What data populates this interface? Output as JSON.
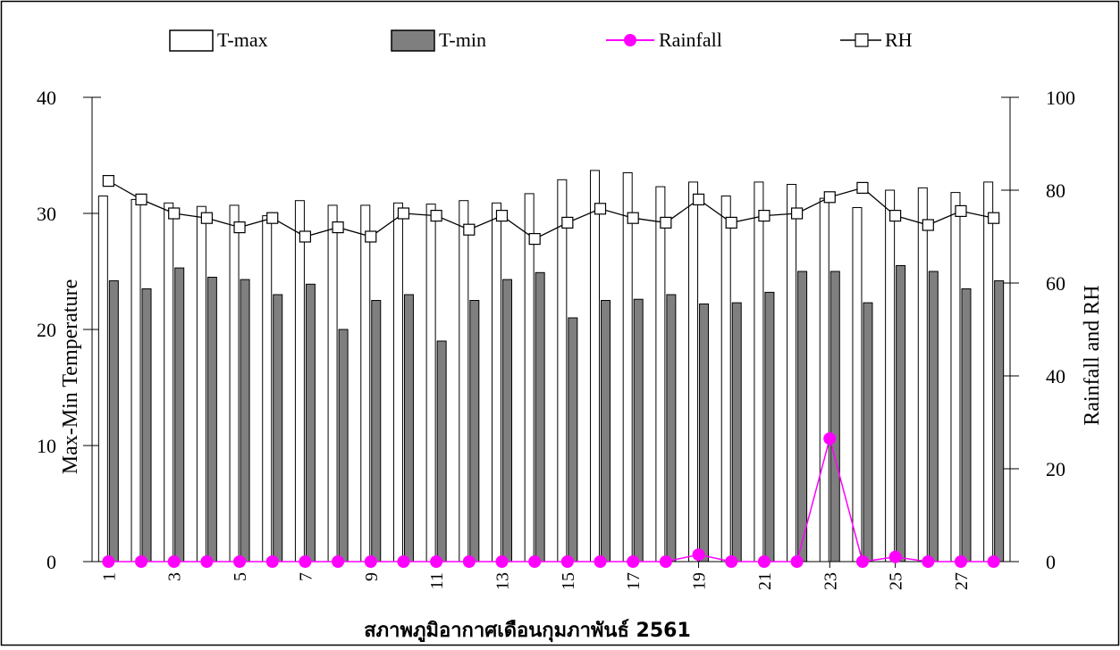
{
  "colors": {
    "tmax_fill": "#ffffff",
    "tmin_fill": "#7f7f7f",
    "bar_stroke": "#000000",
    "rainfall": "#ff00ff",
    "rh_line": "#000000",
    "rh_marker_fill": "#ffffff"
  },
  "chart_data": {
    "type": "bar",
    "x": [
      1,
      2,
      3,
      4,
      5,
      6,
      7,
      8,
      9,
      10,
      11,
      12,
      13,
      14,
      15,
      16,
      17,
      18,
      19,
      20,
      21,
      22,
      23,
      24,
      25,
      26,
      27,
      28
    ],
    "xtick_labels": [
      "1",
      "3",
      "5",
      "7",
      "9",
      "11",
      "13",
      "15",
      "17",
      "19",
      "21",
      "23",
      "25",
      "27"
    ],
    "xlabel": "สภาพภูมิอากาศเดือนกุมภาพันธ์ 2561",
    "ylabel_left": "Max-Min Temperature",
    "ylabel_right": "Rainfall and RH",
    "ylim_left": [
      0,
      40
    ],
    "ylim_right": [
      0,
      100
    ],
    "yticks_left": [
      "0",
      "10",
      "20",
      "30",
      "40"
    ],
    "yticks_right": [
      "0",
      "20",
      "40",
      "60",
      "80",
      "100"
    ],
    "grid": false,
    "legend_position": "top",
    "series": [
      {
        "name": "T-max",
        "kind": "bar",
        "axis": "left",
        "values": [
          31.5,
          31.2,
          30.9,
          30.6,
          30.7,
          29.8,
          31.1,
          30.7,
          30.7,
          30.9,
          30.8,
          31.1,
          30.9,
          31.7,
          32.9,
          33.7,
          33.5,
          32.3,
          32.7,
          31.5,
          32.7,
          32.5,
          31.3,
          30.5,
          32.0,
          32.2,
          31.8,
          32.7
        ]
      },
      {
        "name": "T-min",
        "kind": "bar",
        "axis": "left",
        "values": [
          24.2,
          23.5,
          25.3,
          24.5,
          24.3,
          23.0,
          23.9,
          20.0,
          22.5,
          23.0,
          19.0,
          22.5,
          24.3,
          24.9,
          21.0,
          22.5,
          22.6,
          23.0,
          22.2,
          22.3,
          23.2,
          25.0,
          25.0,
          22.3,
          25.5,
          25.0,
          23.5,
          24.2
        ]
      },
      {
        "name": "Rainfall",
        "kind": "line",
        "axis": "right",
        "values": [
          0,
          0,
          0,
          0,
          0,
          0,
          0,
          0,
          0,
          0,
          0,
          0,
          0,
          0,
          0,
          0,
          0,
          0,
          1.5,
          0,
          0,
          0,
          26.5,
          0,
          1,
          0,
          0,
          0
        ]
      },
      {
        "name": "RH",
        "kind": "line",
        "axis": "right",
        "values": [
          82,
          78,
          75,
          74,
          72,
          74,
          70,
          72,
          70,
          75,
          74.5,
          71.5,
          74.5,
          69.5,
          73,
          76,
          74,
          73,
          78,
          73,
          74.5,
          75,
          78.5,
          80.5,
          74.5,
          72.5,
          75.5,
          74
        ]
      }
    ]
  }
}
